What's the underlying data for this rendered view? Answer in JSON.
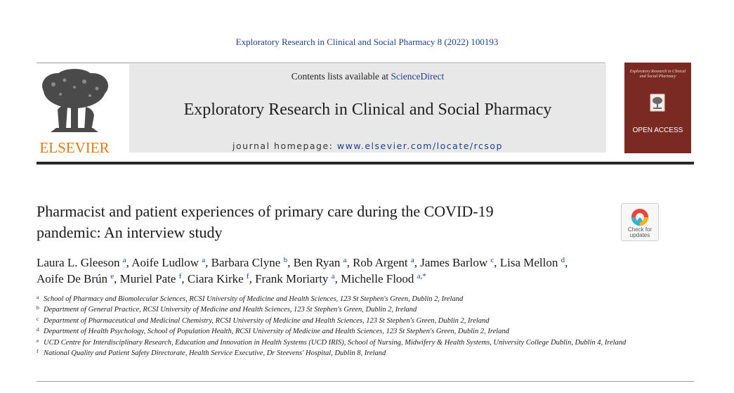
{
  "citation": "Exploratory Research in Clinical and Social Pharmacy 8 (2022) 100193",
  "publisher": {
    "logo_icon": "elsevier-tree-icon",
    "name": "ELSEVIER"
  },
  "masthead": {
    "contents_prefix": "Contents lists available at ",
    "contents_link": "ScienceDirect",
    "journal_title": "Exploratory Research in Clinical and Social Pharmacy",
    "homepage_prefix": "journal homepage: ",
    "homepage_url": "www.elsevier.com/locate/rcsop"
  },
  "cover": {
    "title": "Exploratory Research in Clinical and Social Pharmacy",
    "access_label": "OPEN ACCESS",
    "color": "#7a2a22"
  },
  "article": {
    "title_line1": "Pharmacist and patient experiences of primary care during the COVID-19",
    "title_line2": "pandemic: An interview study",
    "check_updates": {
      "icon": "crossmark-icon",
      "line1": "Check for",
      "line2": "updates"
    }
  },
  "authors": [
    {
      "name": "Laura L. Gleeson",
      "sup": "a",
      "sep": ", "
    },
    {
      "name": "Aoife Ludlow",
      "sup": "a",
      "sep": ", "
    },
    {
      "name": "Barbara Clyne",
      "sup": "b",
      "sep": ", "
    },
    {
      "name": "Ben Ryan",
      "sup": "a",
      "sep": ", "
    },
    {
      "name": "Rob Argent",
      "sup": "a",
      "sep": ", "
    },
    {
      "name": "James Barlow",
      "sup": "c",
      "sep": ", "
    },
    {
      "name": "Lisa Mellon",
      "sup": "d",
      "sep": ","
    },
    {
      "name": "Aoife De Brún",
      "sup": "e",
      "sep": ", "
    },
    {
      "name": "Muriel Pate",
      "sup": "f",
      "sep": ", "
    },
    {
      "name": "Ciara Kirke",
      "sup": "f",
      "sep": ", "
    },
    {
      "name": "Frank Moriarty",
      "sup": "a",
      "sep": ", "
    },
    {
      "name": "Michelle Flood",
      "sup": "a,*",
      "sep": ""
    }
  ],
  "affiliations": [
    {
      "mark": "a",
      "text": "School of Pharmacy and Biomolecular Sciences, RCSI University of Medicine and Health Sciences, 123 St Stephen's Green, Dublin 2, Ireland"
    },
    {
      "mark": "b",
      "text": "Department of General Practice, RCSI University of Medicine and Health Sciences, 123 St Stephen's Green, Dublin 2, Ireland"
    },
    {
      "mark": "c",
      "text": "Department of Pharmaceutical and Medicinal Chemistry, RCSI University of Medicine and Health Sciences, 123 St Stephen's Green, Dublin 2, Ireland"
    },
    {
      "mark": "d",
      "text": "Department of Health Psychology, School of Population Health, RCSI University of Medicine and Health Sciences, 123 St Stephen's Green, Dublin 2, Ireland"
    },
    {
      "mark": "e",
      "text": "UCD Centre for Interdisciplinary Research, Education and Innovation in Health Systems (UCD IRIS), School of Nursing, Midwifery & Health Systems, University College Dublin, Dublin 4, Ireland"
    },
    {
      "mark": "f",
      "text": "National Quality and Patient Safety Directorate, Health Service Executive, Dr Steevens' Hospital, Dublin 8, Ireland"
    }
  ],
  "colors": {
    "link_blue": "#1f3f8a",
    "elsevier_orange": "#e07a14",
    "masthead_grey": "#e8e8e8"
  }
}
